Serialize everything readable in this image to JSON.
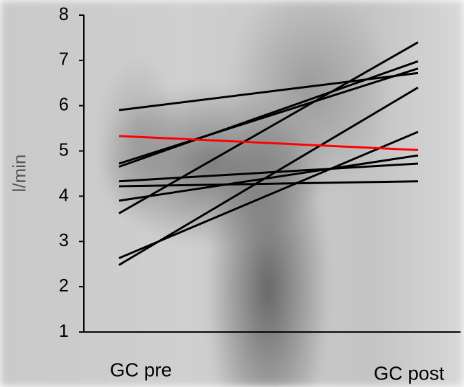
{
  "chart_data": {
    "type": "line",
    "categories": [
      "GC pre",
      "GC post"
    ],
    "y_label": "l/min",
    "ylim": [
      1,
      8
    ],
    "yticks": [
      1,
      2,
      3,
      4,
      5,
      6,
      7,
      8
    ],
    "series": [
      {
        "color": "#000000",
        "values": [
          5.9,
          6.72
        ]
      },
      {
        "color": "#000000",
        "values": [
          4.72,
          6.82
        ]
      },
      {
        "color": "#000000",
        "values": [
          4.65,
          6.98
        ]
      },
      {
        "color": "#000000",
        "values": [
          3.62,
          7.4
        ]
      },
      {
        "color": "#000000",
        "values": [
          2.48,
          6.4
        ]
      },
      {
        "color": "#000000",
        "values": [
          2.63,
          5.42
        ]
      },
      {
        "color": "#000000",
        "values": [
          3.9,
          4.9
        ]
      },
      {
        "color": "#000000",
        "values": [
          4.33,
          4.72
        ]
      },
      {
        "color": "#000000",
        "values": [
          4.22,
          4.33
        ]
      },
      {
        "color": "#ff0000",
        "values": [
          5.33,
          5.02
        ]
      }
    ]
  }
}
